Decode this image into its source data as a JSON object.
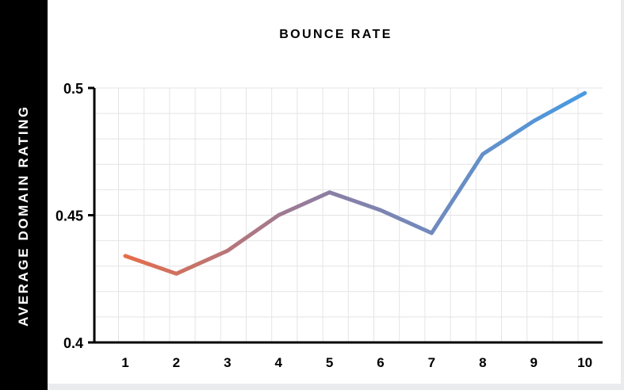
{
  "chart_data": {
    "type": "line",
    "title": "BOUNCE RATE",
    "xlabel": "",
    "ylabel": "AVERAGE DOMAIN RATING",
    "x": [
      1,
      2,
      3,
      4,
      5,
      6,
      7,
      8,
      9,
      10
    ],
    "categories": [
      "1",
      "2",
      "3",
      "4",
      "5",
      "6",
      "7",
      "8",
      "9",
      "10"
    ],
    "series": [
      {
        "values": [
          0.434,
          0.427,
          0.436,
          0.45,
          0.459,
          0.452,
          0.443,
          0.474,
          0.487,
          0.498
        ]
      }
    ],
    "ylim": [
      0.4,
      0.5
    ],
    "yticks": [
      {
        "value": 0.4,
        "label": "0.4"
      },
      {
        "value": 0.45,
        "label": "0.45"
      },
      {
        "value": 0.5,
        "label": "0.5"
      }
    ],
    "grid": true,
    "legend": "none",
    "colors": {
      "start": "#e86d48",
      "mid": "#8c7ea4",
      "end": "#4a9ae0",
      "grid": "#e4e4e4",
      "axis": "#000000"
    }
  }
}
